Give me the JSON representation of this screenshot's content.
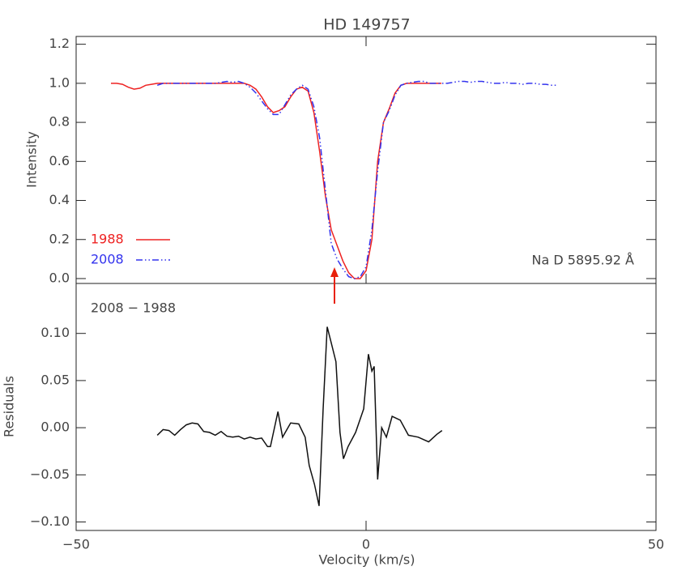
{
  "chart_data": [
    {
      "type": "line",
      "title": "HD 149757",
      "ylabel": "Intensity",
      "annotation": "Na D 5895.92 Å",
      "x": [
        -44,
        -43,
        -42,
        -41,
        -40,
        -39,
        -38,
        -37,
        -36,
        -35,
        -34,
        -33,
        -32,
        -31,
        -30,
        -29,
        -28,
        -27,
        -26,
        -25,
        -24,
        -23,
        -22,
        -21,
        -20,
        -19,
        -18,
        -17,
        -16,
        -15,
        -14,
        -13,
        -12,
        -11,
        -10,
        -9,
        -8,
        -7,
        -6,
        -5,
        -4,
        -3,
        -2,
        -1,
        0,
        1,
        2,
        3,
        4,
        5,
        6,
        7,
        8,
        9,
        10,
        11,
        12,
        13,
        14,
        15,
        16,
        17,
        18,
        19,
        20,
        21,
        22,
        23,
        24,
        25,
        26,
        27,
        28,
        29,
        30,
        31,
        32,
        33
      ],
      "series": [
        {
          "name": "1988",
          "color": "#ee2222",
          "linestyle": "solid",
          "values": [
            1.0,
            1.0,
            0.995,
            0.98,
            0.97,
            0.975,
            0.99,
            0.995,
            1.0,
            1.0,
            1.0,
            1.0,
            1.0,
            1.0,
            1.0,
            1.0,
            1.0,
            1.0,
            1.0,
            1.0,
            1.0,
            1.0,
            1.0,
            1.0,
            0.99,
            0.97,
            0.93,
            0.88,
            0.85,
            0.86,
            0.88,
            0.93,
            0.97,
            0.98,
            0.96,
            0.85,
            0.65,
            0.42,
            0.25,
            0.17,
            0.09,
            0.03,
            0.0,
            0.0,
            0.04,
            0.2,
            0.6,
            0.8,
            0.87,
            0.95,
            0.99,
            1.0,
            1.0,
            1.0,
            1.0,
            1.0,
            1.0,
            1.0,
            null,
            null,
            null,
            null,
            null,
            null,
            null,
            null,
            null,
            null,
            null,
            null,
            null,
            null,
            null,
            null,
            null,
            null,
            null,
            null
          ]
        },
        {
          "name": "2008",
          "color": "#3333ee",
          "linestyle": "dashdotdot",
          "values": [
            null,
            null,
            null,
            null,
            null,
            null,
            null,
            null,
            0.99,
            1.0,
            1.0,
            1.0,
            1.0,
            1.0,
            1.0,
            1.0,
            1.0,
            1.0,
            1.0,
            1.005,
            1.01,
            1.005,
            1.01,
            1.0,
            0.98,
            0.95,
            0.91,
            0.87,
            0.84,
            0.84,
            0.89,
            0.94,
            0.97,
            0.99,
            0.97,
            0.88,
            0.72,
            0.45,
            0.18,
            0.1,
            0.05,
            0.01,
            0.0,
            0.01,
            0.06,
            0.25,
            0.55,
            0.8,
            0.86,
            0.94,
            0.99,
            1.0,
            1.005,
            1.01,
            1.01,
            1.0,
            1.0,
            1.0,
            1.0,
            1.005,
            1.01,
            1.01,
            1.005,
            1.01,
            1.01,
            1.005,
            1.0,
            1.0,
            1.005,
            1.0,
            1.0,
            0.995,
            1.0,
            1.0,
            0.995,
            0.995,
            0.99,
            0.99
          ]
        }
      ],
      "xlim": [
        -50,
        50
      ],
      "ylim": [
        -0.025,
        1.24
      ],
      "yticks": [
        {
          "value": 0,
          "label": "0.0"
        },
        0.2,
        0.4,
        0.6,
        0.8,
        {
          "value": 1,
          "label": "1.0"
        },
        1.2
      ],
      "legend": "lower left"
    },
    {
      "type": "line",
      "ylabel": "Residuals",
      "xlabel": "Velocity (km/s)",
      "annotation": "2008 − 1988",
      "x": [
        -36,
        -35,
        -34,
        -33,
        -32,
        -31,
        -30,
        -29,
        -28,
        -27,
        -26,
        -25,
        -24,
        -23,
        -22,
        -21,
        -20,
        -19,
        -18,
        -17,
        -16.5,
        -15.2,
        -14.4,
        -13,
        -11.6,
        -10.5,
        -9.8,
        -8.9,
        -8.1,
        -7.4,
        -6.7,
        -6,
        -5.2,
        -4.5,
        -3.9,
        -3.1,
        -1.8,
        -0.4,
        0.4,
        1,
        1.4,
        2,
        2.7,
        3.5,
        4.5,
        5.9,
        7.3,
        9,
        10.8,
        12.2,
        13.1
      ],
      "values": [
        -0.008,
        -0.002,
        -0.003,
        -0.008,
        -0.002,
        0.003,
        0.005,
        0.004,
        -0.004,
        -0.005,
        -0.008,
        -0.004,
        -0.009,
        -0.01,
        -0.009,
        -0.012,
        -0.01,
        -0.012,
        -0.011,
        -0.02,
        -0.02,
        0.017,
        -0.01,
        0.005,
        0.004,
        -0.01,
        -0.04,
        -0.06,
        -0.083,
        0.02,
        0.107,
        0.09,
        0.07,
        -0.005,
        -0.033,
        -0.02,
        -0.005,
        0.02,
        0.078,
        0.06,
        0.065,
        -0.055,
        0.0,
        -0.01,
        0.012,
        0.008,
        -0.008,
        -0.01,
        -0.015,
        -0.007,
        -0.003
      ],
      "color": "#111111",
      "xlim": [
        -50,
        50
      ],
      "ylim": [
        -0.109,
        0.153
      ],
      "xticks": [
        {
          "value": -50,
          "label": "−50"
        },
        0,
        50
      ],
      "yticks": [
        {
          "value": -0.1,
          "label": "−0.10"
        },
        {
          "value": -0.05,
          "label": "−0.05"
        },
        {
          "value": 0,
          "label": "0.00"
        },
        0.05,
        {
          "value": 0.1,
          "label": "0.10"
        }
      ]
    }
  ]
}
